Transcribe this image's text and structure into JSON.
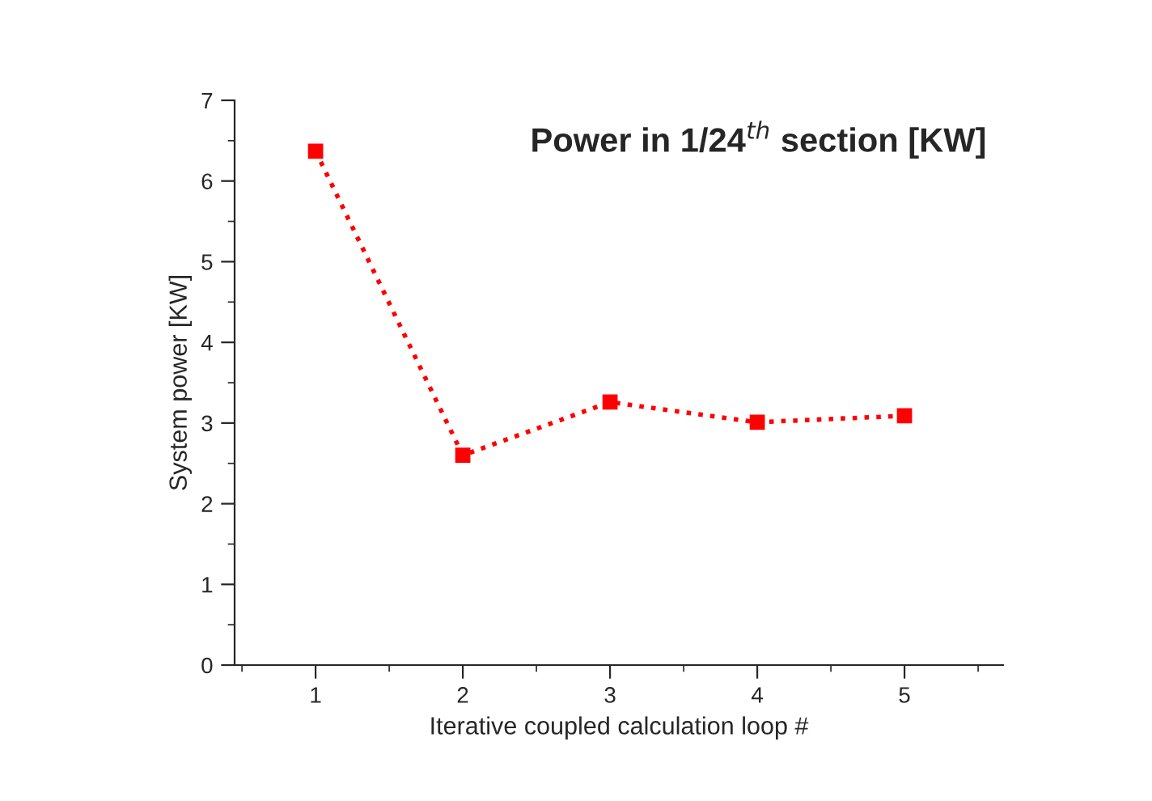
{
  "chart_data": {
    "type": "line",
    "title": "Power in 1/24$^{th}$ section [KW]",
    "xlabel": "Iterative coupled calculation loop #",
    "ylabel": "System power [KW]",
    "x": [
      1,
      2,
      3,
      4,
      5
    ],
    "series": [
      {
        "color": "#ff0000",
        "values": [
          6.37,
          2.6,
          3.26,
          3.01,
          3.09
        ]
      }
    ],
    "xlim": [
      0.45,
      5.67
    ],
    "xticks": [
      1,
      2,
      3,
      4,
      5
    ],
    "ylim": [
      0,
      7
    ],
    "yticks": [
      0,
      1,
      2,
      3,
      4,
      5,
      6,
      7
    ],
    "marker": "square",
    "line_style": "dotted",
    "grid": false,
    "legend": false
  }
}
